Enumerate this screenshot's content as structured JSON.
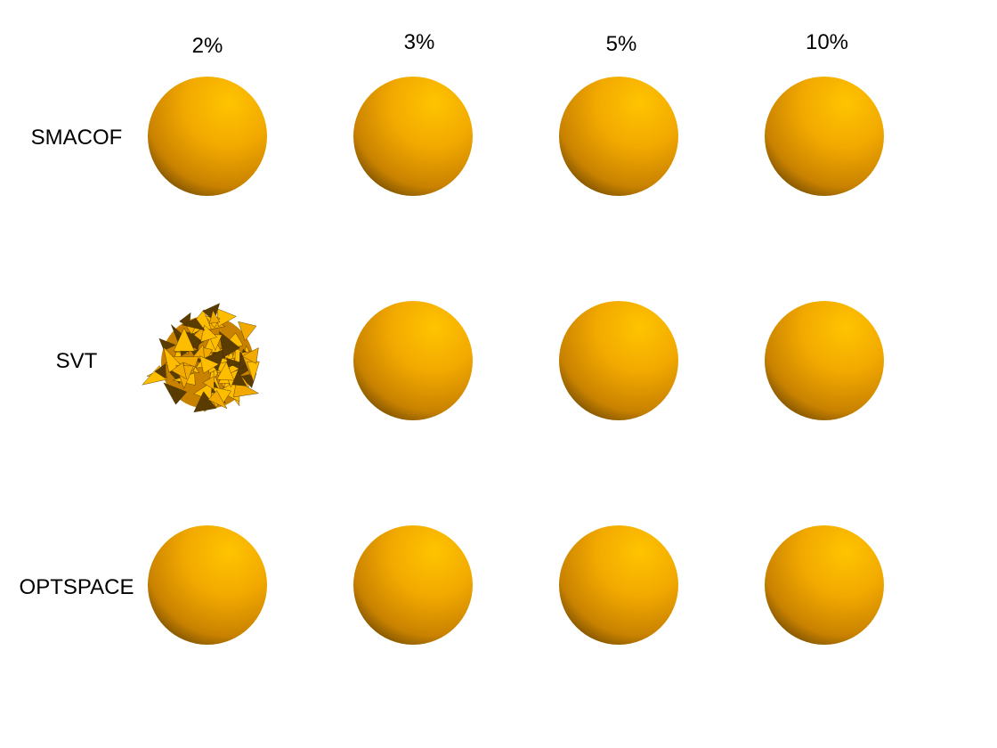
{
  "columns": [
    {
      "label": "2%"
    },
    {
      "label": "3%"
    },
    {
      "label": "5%"
    },
    {
      "label": "10%"
    }
  ],
  "rows": [
    {
      "label": "SMACOF",
      "cells": [
        "sphere",
        "sphere",
        "sphere",
        "sphere"
      ]
    },
    {
      "label": "SVT",
      "cells": [
        "spiky",
        "sphere",
        "sphere",
        "sphere"
      ]
    },
    {
      "label": "OPTSPACE",
      "cells": [
        "sphere",
        "sphere",
        "sphere",
        "sphere"
      ]
    }
  ],
  "colors": {
    "highlight": "#ffc400",
    "mid": "#f2a900",
    "dark": "#c98200",
    "shadow": "#3d2a00",
    "spike_light": "#ffbd00",
    "spike_dark": "#5a3c00"
  }
}
